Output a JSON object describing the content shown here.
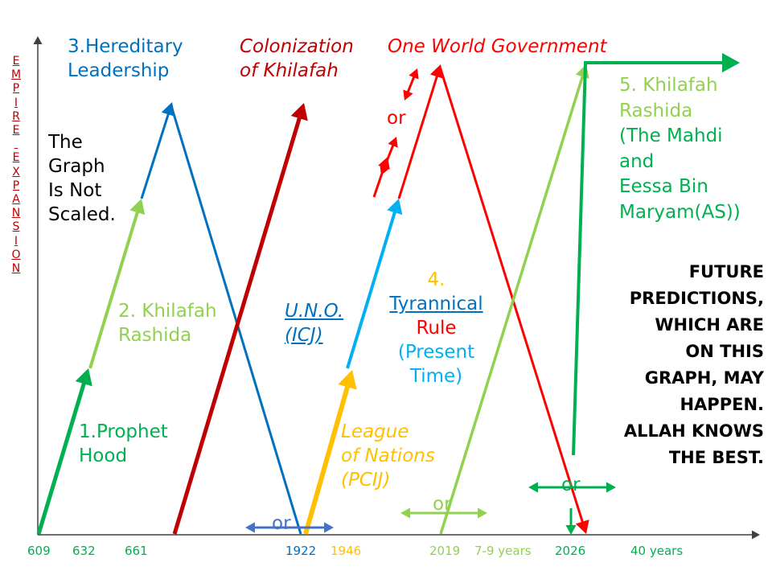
{
  "vertical_axis_label": [
    "E",
    "M",
    "P",
    "I",
    "R",
    "E",
    "",
    "E",
    "X",
    "P",
    "A",
    "N",
    "S",
    "I",
    "O",
    "N"
  ],
  "timeline_ticks": [
    {
      "text": "609",
      "color": "#00b050"
    },
    {
      "text": "632",
      "color": "#00b050"
    },
    {
      "text": "661",
      "color": "#00b050"
    },
    {
      "text": "1922",
      "color": "#0070c0"
    },
    {
      "text": "1946",
      "color": "#ffc000"
    },
    {
      "text": "2019",
      "color": "#92d050"
    },
    {
      "text": "7-9 years",
      "color": "#92d050"
    },
    {
      "text": "2026",
      "color": "#00b050"
    },
    {
      "text": "40 years",
      "color": "#00b050"
    }
  ],
  "labels": {
    "not_scaled": [
      "The",
      "Graph",
      "Is Not",
      "Scaled."
    ],
    "prophethood": [
      "1.Prophet",
      "Hood"
    ],
    "khilafah_rashida_2": [
      "2. Khilafah",
      "Rashida"
    ],
    "hereditary": [
      "3.Hereditary",
      "Leadership"
    ],
    "colonization": [
      "Colonization",
      "of Khilafah"
    ],
    "one_world": "One World Government",
    "uno": [
      "U.N.O.",
      "(ICJ)"
    ],
    "tyrannical": [
      "4.",
      "Tyrannical ",
      "Rule",
      "(Present",
      "Time)"
    ],
    "league": [
      "League",
      "of Nations",
      "(PCIJ)"
    ],
    "khilafah_rashida_5": [
      "5. Khilafah",
      "Rashida",
      "(The Mahdi",
      "and",
      "Eessa Bin",
      "Maryam(AS))"
    ],
    "future_note": [
      "FUTURE",
      "PREDICTIONS,",
      "WHICH ARE",
      "ON THIS",
      "GRAPH, MAY",
      "HAPPEN.",
      "ALLAH KNOWS",
      "THE BEST."
    ]
  },
  "or_labels": [
    "or",
    "or",
    "or",
    "or"
  ],
  "colors": {
    "prophethood": "#00b050",
    "khilafah": "#92d050",
    "hereditary": "#0070c0",
    "colonization": "#c00000",
    "league": "#ffc000",
    "uno": "#00b0f0",
    "tyrannical": "#ff0000",
    "khilafah5": "#92d050",
    "arrow_blue": "#4472c4"
  }
}
